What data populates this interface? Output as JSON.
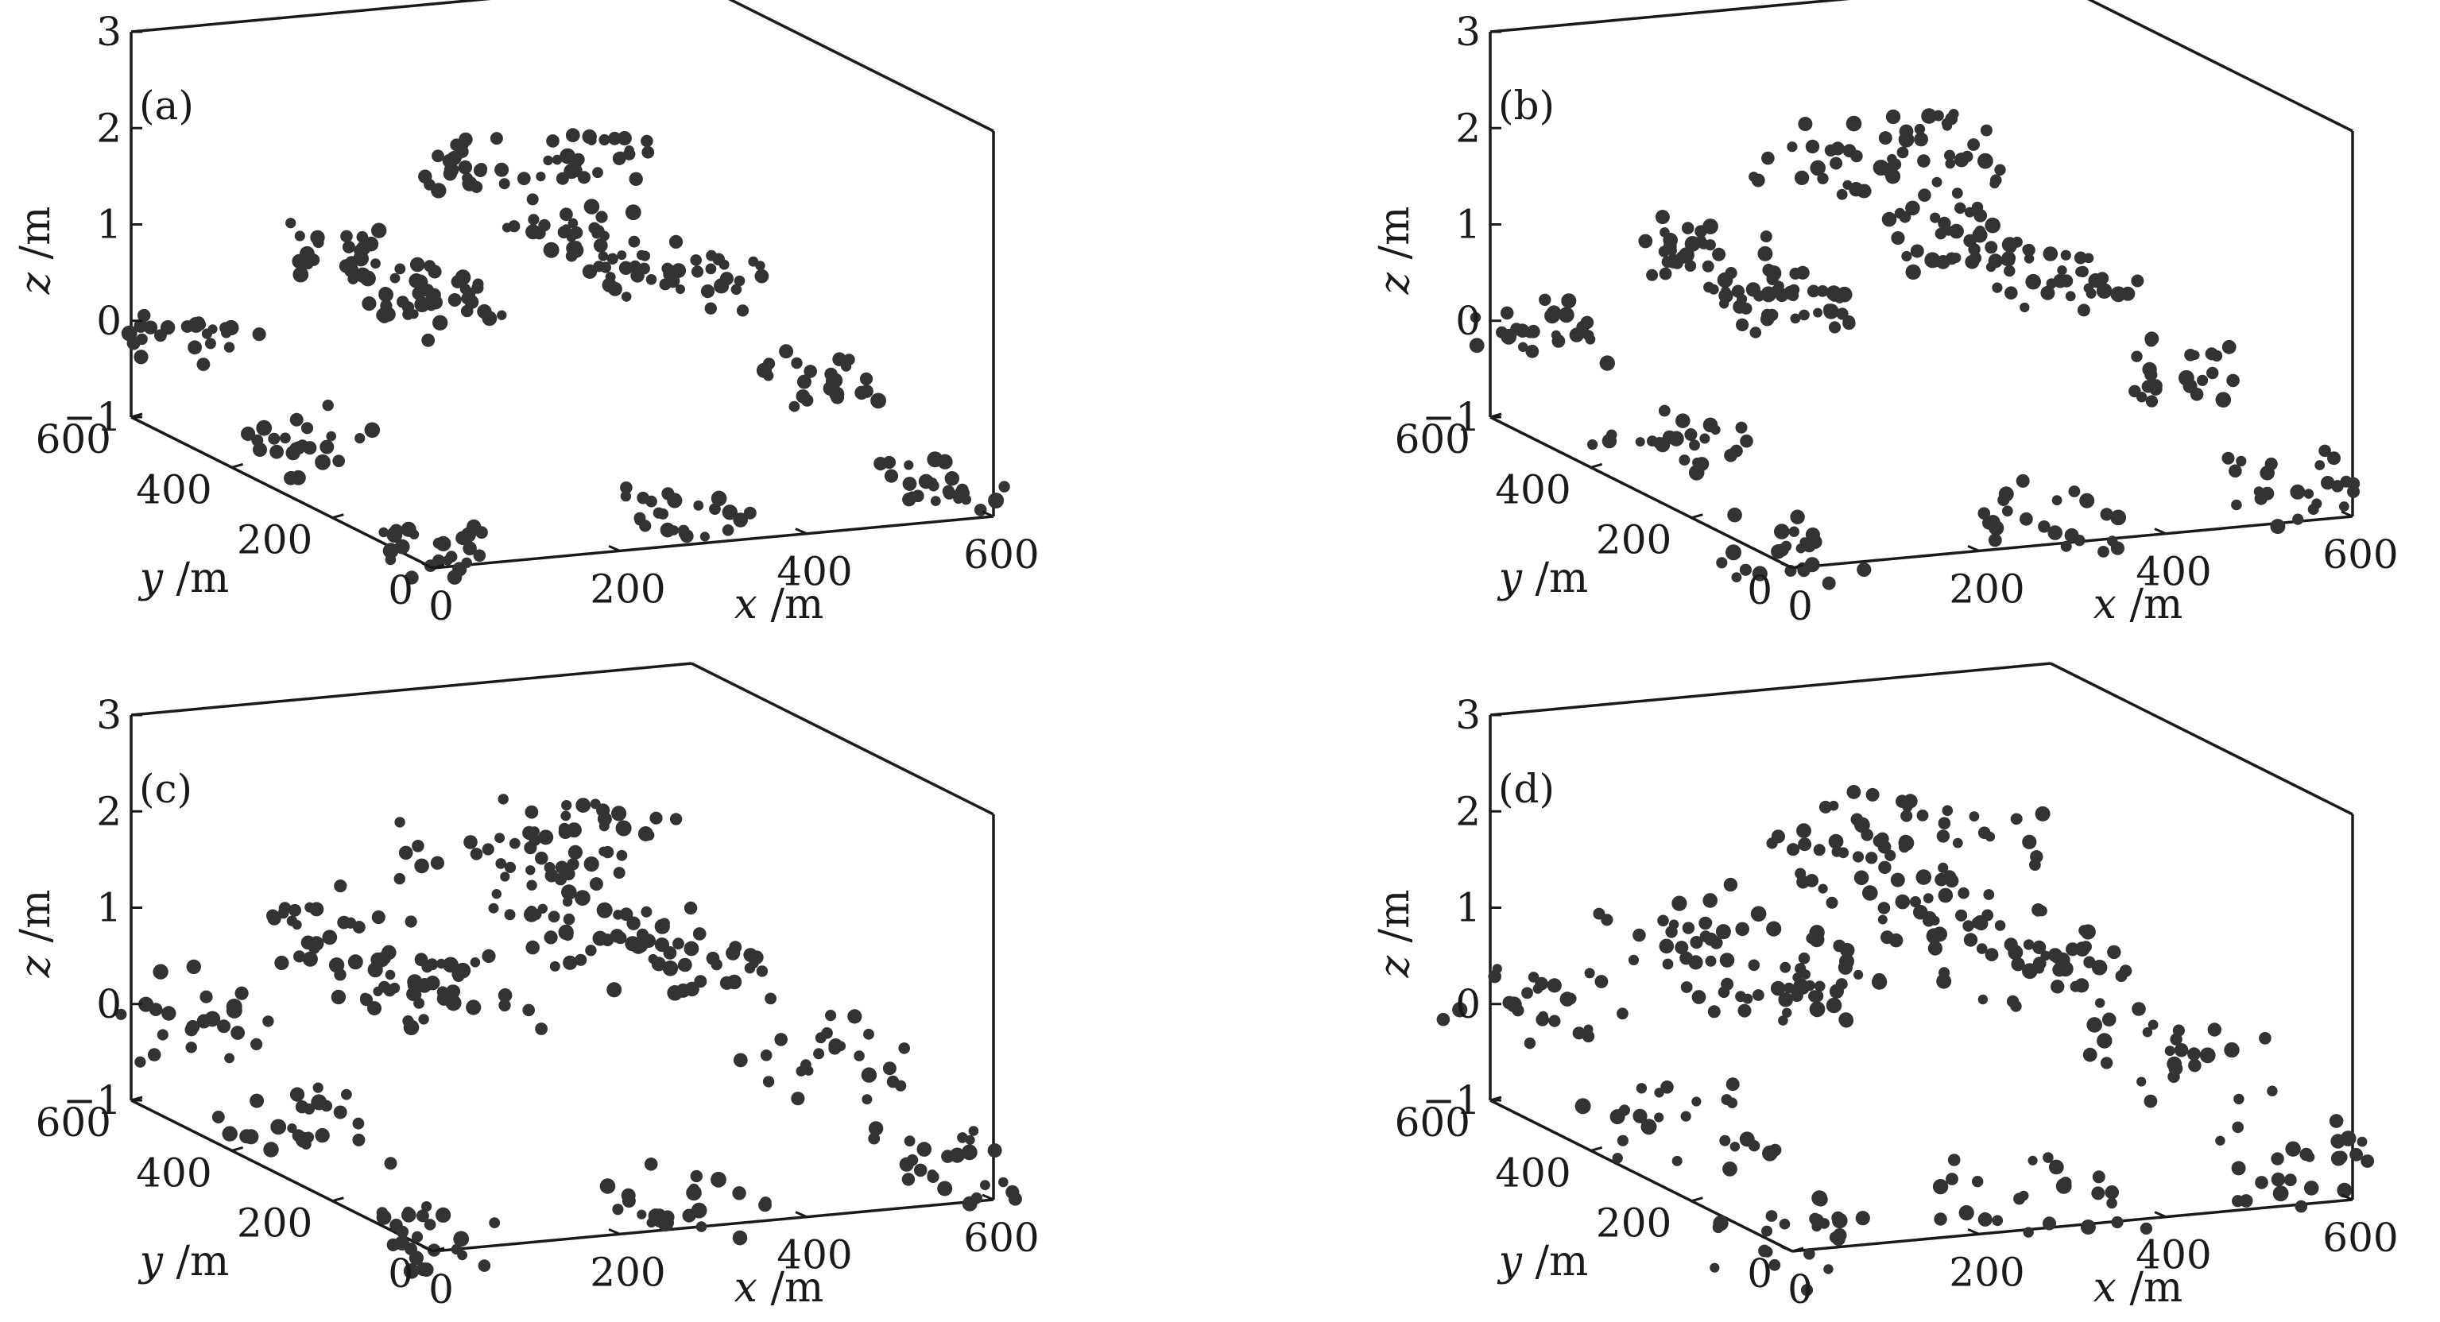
{
  "chart_data": [
    {
      "type": "scatter",
      "panel_label": "(a)",
      "x_var": "x",
      "y_var": "y",
      "z_var": "z",
      "unit": "/m",
      "x_ticks": [
        "0",
        "200",
        "400",
        "600"
      ],
      "y_ticks": [
        "0",
        "200",
        "400",
        "600"
      ],
      "z_ticks": [
        "−1",
        "0",
        "1",
        "2",
        "3"
      ],
      "xlim": [
        0,
        600
      ],
      "ylim": [
        0,
        600
      ],
      "zlim": [
        -1,
        3
      ],
      "point_color": "#333333",
      "noise_level": 0.15,
      "points": [
        {
          "x": 30,
          "y": 540,
          "z": 0.0
        },
        {
          "x": 300,
          "y": 540,
          "z": 0.05
        },
        {
          "x": 580,
          "y": 540,
          "z": 0.05
        },
        {
          "x": 30,
          "y": 300,
          "z": -0.5
        },
        {
          "x": 580,
          "y": 300,
          "z": -0.3
        },
        {
          "x": 30,
          "y": 60,
          "z": -1.0
        },
        {
          "x": 300,
          "y": 60,
          "z": -0.9
        },
        {
          "x": 580,
          "y": 60,
          "z": -0.8
        },
        {
          "x": 150,
          "y": 480,
          "z": 0.9
        },
        {
          "x": 400,
          "y": 480,
          "z": 0.95
        },
        {
          "x": 150,
          "y": 350,
          "z": 0.85
        },
        {
          "x": 400,
          "y": 350,
          "z": 0.9
        },
        {
          "x": 280,
          "y": 440,
          "z": 1.8
        },
        {
          "x": 400,
          "y": 440,
          "z": 1.85
        }
      ]
    },
    {
      "type": "scatter",
      "panel_label": "(b)",
      "x_var": "x",
      "y_var": "y",
      "z_var": "z",
      "unit": "/m",
      "x_ticks": [
        "0",
        "200",
        "400",
        "600"
      ],
      "y_ticks": [
        "0",
        "200",
        "400",
        "600"
      ],
      "z_ticks": [
        "−1",
        "0",
        "1",
        "2",
        "3"
      ],
      "xlim": [
        0,
        600
      ],
      "ylim": [
        0,
        600
      ],
      "zlim": [
        -1,
        3
      ],
      "point_color": "#333333",
      "noise_level": 0.35,
      "points": [
        {
          "x": 30,
          "y": 540,
          "z": 0.0
        },
        {
          "x": 300,
          "y": 540,
          "z": 0.05
        },
        {
          "x": 580,
          "y": 540,
          "z": 0.05
        },
        {
          "x": 30,
          "y": 300,
          "z": -0.5
        },
        {
          "x": 580,
          "y": 300,
          "z": -0.3
        },
        {
          "x": 30,
          "y": 60,
          "z": -1.0
        },
        {
          "x": 300,
          "y": 60,
          "z": -0.9
        },
        {
          "x": 580,
          "y": 60,
          "z": -0.8
        },
        {
          "x": 150,
          "y": 480,
          "z": 0.9
        },
        {
          "x": 400,
          "y": 480,
          "z": 0.95
        },
        {
          "x": 150,
          "y": 350,
          "z": 0.85
        },
        {
          "x": 400,
          "y": 350,
          "z": 0.9
        },
        {
          "x": 280,
          "y": 440,
          "z": 1.8
        },
        {
          "x": 400,
          "y": 440,
          "z": 1.85
        }
      ]
    },
    {
      "type": "scatter",
      "panel_label": "(c)",
      "x_var": "x",
      "y_var": "y",
      "z_var": "z",
      "unit": "/m",
      "x_ticks": [
        "0",
        "200",
        "400",
        "600"
      ],
      "y_ticks": [
        "0",
        "200",
        "400",
        "600"
      ],
      "z_ticks": [
        "−1",
        "0",
        "1",
        "2",
        "3"
      ],
      "xlim": [
        0,
        600
      ],
      "ylim": [
        0,
        600
      ],
      "zlim": [
        -1,
        3
      ],
      "point_color": "#333333",
      "noise_level": 0.6,
      "points": [
        {
          "x": 30,
          "y": 540,
          "z": 0.0
        },
        {
          "x": 300,
          "y": 540,
          "z": 0.05
        },
        {
          "x": 580,
          "y": 540,
          "z": 0.05
        },
        {
          "x": 30,
          "y": 300,
          "z": -0.5
        },
        {
          "x": 580,
          "y": 300,
          "z": -0.3
        },
        {
          "x": 30,
          "y": 60,
          "z": -1.0
        },
        {
          "x": 300,
          "y": 60,
          "z": -0.9
        },
        {
          "x": 580,
          "y": 60,
          "z": -0.8
        },
        {
          "x": 150,
          "y": 480,
          "z": 0.9
        },
        {
          "x": 400,
          "y": 480,
          "z": 0.95
        },
        {
          "x": 150,
          "y": 350,
          "z": 0.85
        },
        {
          "x": 400,
          "y": 350,
          "z": 0.9
        },
        {
          "x": 280,
          "y": 440,
          "z": 1.8
        },
        {
          "x": 400,
          "y": 440,
          "z": 1.85
        }
      ]
    },
    {
      "type": "scatter",
      "panel_label": "(d)",
      "x_var": "x",
      "y_var": "y",
      "z_var": "z",
      "unit": "/m",
      "x_ticks": [
        "0",
        "200",
        "400",
        "600"
      ],
      "y_ticks": [
        "0",
        "200",
        "400",
        "600"
      ],
      "z_ticks": [
        "−1",
        "0",
        "1",
        "2",
        "3"
      ],
      "xlim": [
        0,
        600
      ],
      "ylim": [
        0,
        600
      ],
      "zlim": [
        -1,
        3
      ],
      "point_color": "#333333",
      "noise_level": 0.8,
      "points": [
        {
          "x": 30,
          "y": 540,
          "z": 0.0
        },
        {
          "x": 300,
          "y": 540,
          "z": 0.05
        },
        {
          "x": 580,
          "y": 540,
          "z": 0.05
        },
        {
          "x": 30,
          "y": 300,
          "z": -0.5
        },
        {
          "x": 580,
          "y": 300,
          "z": -0.3
        },
        {
          "x": 30,
          "y": 60,
          "z": -1.0
        },
        {
          "x": 300,
          "y": 60,
          "z": -0.9
        },
        {
          "x": 580,
          "y": 60,
          "z": -0.8
        },
        {
          "x": 150,
          "y": 480,
          "z": 0.9
        },
        {
          "x": 400,
          "y": 480,
          "z": 0.95
        },
        {
          "x": 150,
          "y": 350,
          "z": 0.85
        },
        {
          "x": 400,
          "y": 350,
          "z": 0.9
        },
        {
          "x": 280,
          "y": 440,
          "z": 1.8
        },
        {
          "x": 400,
          "y": 440,
          "z": 1.85
        }
      ]
    }
  ]
}
